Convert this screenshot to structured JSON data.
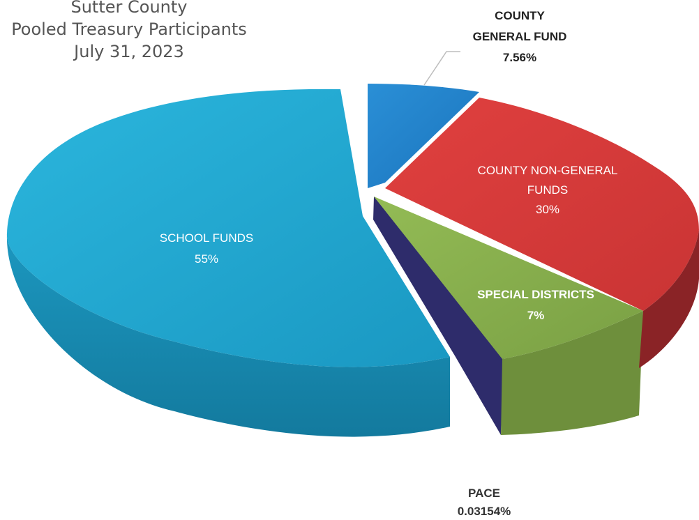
{
  "chart_title": [
    "Sutter County",
    "Pooled Treasury Participants",
    "July 31, 2023"
  ],
  "chart_data": {
    "type": "pie",
    "title": "Sutter County Pooled Treasury Participants July 31, 2023",
    "slices": [
      {
        "name": "COUNTY GENERAL FUND",
        "value": 7.56,
        "label_value": "7.56%",
        "color": "#1e7fc8"
      },
      {
        "name": "COUNTY NON-GENERAL FUNDS",
        "value": 30,
        "label_value": "30%",
        "color": "#d83c3c"
      },
      {
        "name": "SPECIAL DISTRICTS",
        "value": 7,
        "label_value": "7%",
        "color": "#86ad4c"
      },
      {
        "name": "PACE",
        "value": 0.03154,
        "label_value": "0.03154%",
        "color": "#2e2c6b"
      },
      {
        "name": "SCHOOL FUNDS",
        "value": 55,
        "label_value": "55%",
        "color": "#1ba3cb"
      }
    ]
  }
}
